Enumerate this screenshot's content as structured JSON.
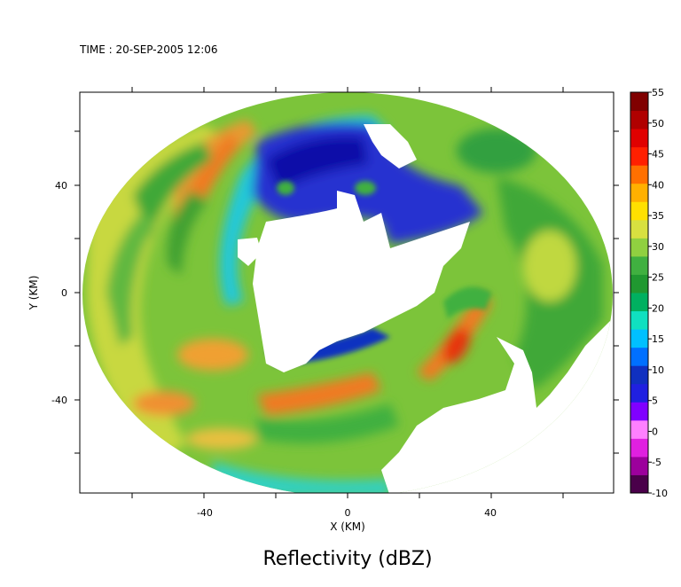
{
  "header": {
    "time_label": "TIME : 20-SEP-2005 12:06"
  },
  "chart_data": {
    "type": "heatmap",
    "title": "Reflectivity (dBZ)",
    "xlabel": "X (KM)",
    "ylabel": "Y (KM)",
    "xlim": [
      -75,
      75
    ],
    "ylim": [
      -57,
      56
    ],
    "x_ticks": [
      -40,
      0,
      40
    ],
    "y_ticks": [
      40,
      0,
      -40
    ],
    "grid": false,
    "colorbar": {
      "location": "right",
      "ticks": [
        55,
        50,
        45,
        40,
        35,
        30,
        25,
        20,
        15,
        10,
        5,
        0,
        -5,
        -10
      ],
      "min": -10,
      "max": 55,
      "colors": [
        "#4a004a",
        "#9c009c",
        "#e020e0",
        "#ff80ff",
        "#8000ff",
        "#2020e0",
        "#1030c0",
        "#0070ff",
        "#00c0ff",
        "#10e0c0",
        "#00b060",
        "#209830",
        "#40b040",
        "#90d040",
        "#d8e040",
        "#ffe000",
        "#ffb000",
        "#ff7000",
        "#ff2000",
        "#e00000",
        "#b00000",
        "#800000"
      ]
    },
    "fields": {
      "coverage": "ellipse of radius ~75 km centered near (0, -1), with echo-free region near the center",
      "value_range": [
        10,
        50
      ]
    }
  }
}
